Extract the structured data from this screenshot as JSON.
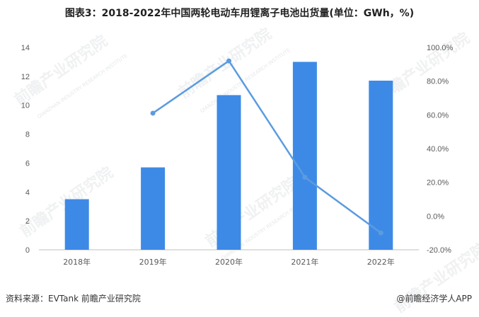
{
  "chart_data": {
    "type": "bar",
    "title": "图表3：2018-2022年中国两轮电动车用锂离子电池出货量(单位：GWh，%)",
    "categories": [
      "2018年",
      "2019年",
      "2020年",
      "2021年",
      "2022年"
    ],
    "series": [
      {
        "type": "bar",
        "axis": "left",
        "color": "#3d8ae6",
        "values": [
          3.5,
          5.7,
          10.7,
          13.0,
          11.7
        ]
      },
      {
        "type": "line",
        "axis": "right",
        "color": "#5b9be0",
        "values": [
          null,
          61.0,
          92.0,
          23.0,
          -10.0
        ]
      }
    ],
    "y_left": {
      "min": 0,
      "max": 14,
      "ticks": [
        "0",
        "2",
        "4",
        "6",
        "8",
        "10",
        "12",
        "14"
      ]
    },
    "y_right": {
      "min": -20,
      "max": 100,
      "ticks": [
        "-20.0%",
        "0.0%",
        "20.0%",
        "40.0%",
        "60.0%",
        "80.0%",
        "100.0%"
      ]
    },
    "grid": false,
    "legend": "none"
  },
  "footer": {
    "source": "资料来源：EVTank 前瞻产业研究院",
    "brand": "@前瞻经济学人APP"
  },
  "watermark": {
    "text": "前瞻产业研究院",
    "subtext": "QIANZHAN INDUSTRY RESEARCH INSTITUTE"
  }
}
